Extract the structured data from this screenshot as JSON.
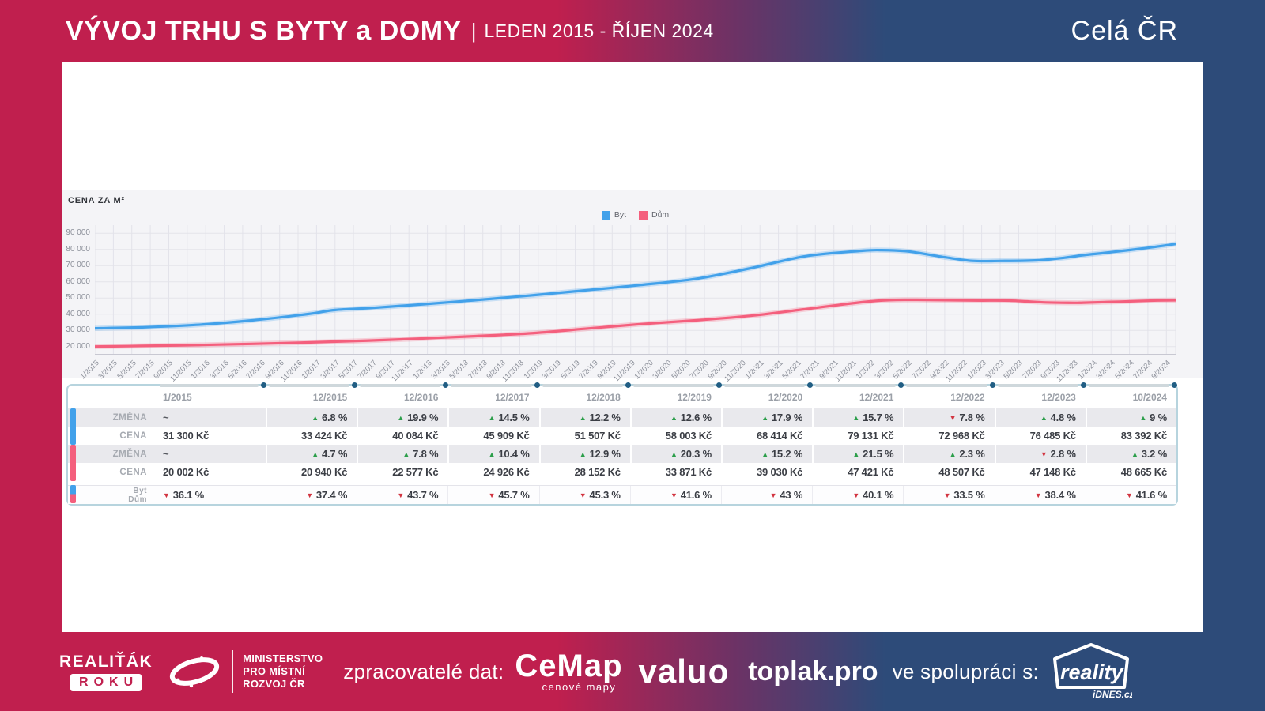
{
  "header": {
    "title": "VÝVOJ TRHU S BYTY a DOMY",
    "separator": "|",
    "subtitle": "LEDEN 2015 - ŘÍJEN 2024",
    "region": "Celá ČR"
  },
  "chart": {
    "ylabel_title": "CENA ZA M²"
  },
  "chart_data": {
    "type": "line",
    "ylabel": "CENA ZA M²",
    "ylim": [
      20000,
      90000
    ],
    "grid": true,
    "legend_position": "top-center",
    "y_ticks": [
      "90 000",
      "80 000",
      "70 000",
      "60 000",
      "50 000",
      "40 000",
      "30 000",
      "20 000"
    ],
    "x_ticks": [
      "1/2015",
      "3/2015",
      "5/2015",
      "7/2015",
      "9/2015",
      "11/2015",
      "1/2016",
      "3/2016",
      "5/2016",
      "7/2016",
      "9/2016",
      "11/2016",
      "1/2017",
      "3/2017",
      "5/2017",
      "7/2017",
      "9/2017",
      "11/2017",
      "1/2018",
      "3/2018",
      "5/2018",
      "7/2018",
      "9/2018",
      "11/2018",
      "1/2019",
      "3/2019",
      "5/2019",
      "7/2019",
      "9/2019",
      "11/2019",
      "1/2020",
      "3/2020",
      "5/2020",
      "7/2020",
      "9/2020",
      "11/2020",
      "1/2021",
      "3/2021",
      "5/2021",
      "7/2021",
      "9/2021",
      "11/2021",
      "1/2022",
      "3/2022",
      "5/2022",
      "7/2022",
      "9/2022",
      "11/2022",
      "1/2023",
      "3/2023",
      "5/2023",
      "7/2023",
      "9/2023",
      "11/2023",
      "1/2024",
      "3/2024",
      "5/2024",
      "7/2024",
      "9/2024"
    ],
    "series": [
      {
        "name": "Byt",
        "color": "#42a1ea",
        "points": [
          [
            "1/2015",
            31300
          ],
          [
            "6/2015",
            31900
          ],
          [
            "12/2015",
            33424
          ],
          [
            "6/2016",
            36200
          ],
          [
            "12/2016",
            40084
          ],
          [
            "3/2017",
            42600
          ],
          [
            "7/2017",
            43900
          ],
          [
            "12/2017",
            45909
          ],
          [
            "6/2018",
            48600
          ],
          [
            "12/2018",
            51507
          ],
          [
            "6/2019",
            54700
          ],
          [
            "12/2019",
            58003
          ],
          [
            "6/2020",
            61800
          ],
          [
            "12/2020",
            68414
          ],
          [
            "6/2021",
            75900
          ],
          [
            "12/2021",
            79131
          ],
          [
            "2/2022",
            79600
          ],
          [
            "5/2022",
            78800
          ],
          [
            "9/2022",
            75200
          ],
          [
            "12/2022",
            72968
          ],
          [
            "3/2023",
            72900
          ],
          [
            "7/2023",
            73300
          ],
          [
            "10/2023",
            74900
          ],
          [
            "12/2023",
            76485
          ],
          [
            "3/2024",
            78300
          ],
          [
            "7/2024",
            81000
          ],
          [
            "10/2024",
            83392
          ]
        ]
      },
      {
        "name": "Dům",
        "color": "#f45f7d",
        "points": [
          [
            "1/2015",
            20002
          ],
          [
            "6/2015",
            20400
          ],
          [
            "12/2015",
            20940
          ],
          [
            "6/2016",
            21700
          ],
          [
            "12/2016",
            22577
          ],
          [
            "6/2017",
            23600
          ],
          [
            "12/2017",
            24926
          ],
          [
            "6/2018",
            26400
          ],
          [
            "12/2018",
            28152
          ],
          [
            "6/2019",
            31000
          ],
          [
            "12/2019",
            33871
          ],
          [
            "6/2020",
            36200
          ],
          [
            "12/2020",
            39030
          ],
          [
            "6/2021",
            43200
          ],
          [
            "12/2021",
            47421
          ],
          [
            "3/2022",
            48700
          ],
          [
            "6/2022",
            48900
          ],
          [
            "12/2022",
            48507
          ],
          [
            "4/2023",
            48400
          ],
          [
            "8/2023",
            47300
          ],
          [
            "11/2023",
            47050
          ],
          [
            "12/2023",
            47148
          ],
          [
            "4/2024",
            47800
          ],
          [
            "8/2024",
            48500
          ],
          [
            "10/2024",
            48665
          ]
        ]
      }
    ]
  },
  "table": {
    "columns": [
      "1/2015",
      "12/2015",
      "12/2016",
      "12/2017",
      "12/2018",
      "12/2019",
      "12/2020",
      "12/2021",
      "12/2022",
      "12/2023",
      "10/2024"
    ],
    "change_label": "ZMĚNA",
    "price_label": "CENA",
    "byt": {
      "label": "Byt",
      "color": "#42a1ea",
      "change": [
        "~",
        "6.8 %",
        "19.9 %",
        "14.5 %",
        "12.2 %",
        "12.6 %",
        "17.9 %",
        "15.7 %",
        "7.8 %",
        "4.8 %",
        "9 %"
      ],
      "change_dir": [
        "none",
        "up",
        "up",
        "up",
        "up",
        "up",
        "up",
        "up",
        "down",
        "up",
        "up"
      ],
      "price": [
        "31 300 Kč",
        "33 424 Kč",
        "40 084 Kč",
        "45 909 Kč",
        "51 507 Kč",
        "58 003 Kč",
        "68 414 Kč",
        "79 131 Kč",
        "72 968 Kč",
        "76 485 Kč",
        "83 392 Kč"
      ]
    },
    "dum": {
      "label": "Dům",
      "color": "#f45f7d",
      "change": [
        "~",
        "4.7 %",
        "7.8 %",
        "10.4 %",
        "12.9 %",
        "20.3 %",
        "15.2 %",
        "21.5 %",
        "2.3 %",
        "2.8 %",
        "3.2 %"
      ],
      "change_dir": [
        "none",
        "up",
        "up",
        "up",
        "up",
        "up",
        "up",
        "up",
        "up",
        "down",
        "up"
      ],
      "price": [
        "20 002 Kč",
        "20 940 Kč",
        "22 577 Kč",
        "24 926 Kč",
        "28 152 Kč",
        "33 871 Kč",
        "39 030 Kč",
        "47 421 Kč",
        "48 507 Kč",
        "47 148 Kč",
        "48 665 Kč"
      ]
    },
    "ratio": {
      "label_line1": "Byt",
      "label_line2": "Dům",
      "values": [
        "36.1 %",
        "37.4 %",
        "43.7 %",
        "45.7 %",
        "45.3 %",
        "41.6 %",
        "43 %",
        "40.1 %",
        "33.5 %",
        "38.4 %",
        "41.6 %"
      ],
      "dir": [
        "down",
        "down",
        "down",
        "down",
        "down",
        "down",
        "down",
        "down",
        "down",
        "down",
        "down"
      ]
    }
  },
  "footer": {
    "realtak": {
      "line1": "REALIŤÁK",
      "line2": "ROKU"
    },
    "ministry": {
      "line1": "MINISTERSTVO",
      "line2": "PRO MÍSTNÍ",
      "line3": "ROZVOJ ČR"
    },
    "data_processors_label": "zpracovatelé dat:",
    "cemap": {
      "name": "CeMap",
      "subtitle": "cenové mapy"
    },
    "valuo": "valuo",
    "toplak": "toplak.pro",
    "cooperation_label": "ve spolupráci s:",
    "reality": {
      "name": "reality",
      "subtitle": "iDNES.cz"
    }
  }
}
